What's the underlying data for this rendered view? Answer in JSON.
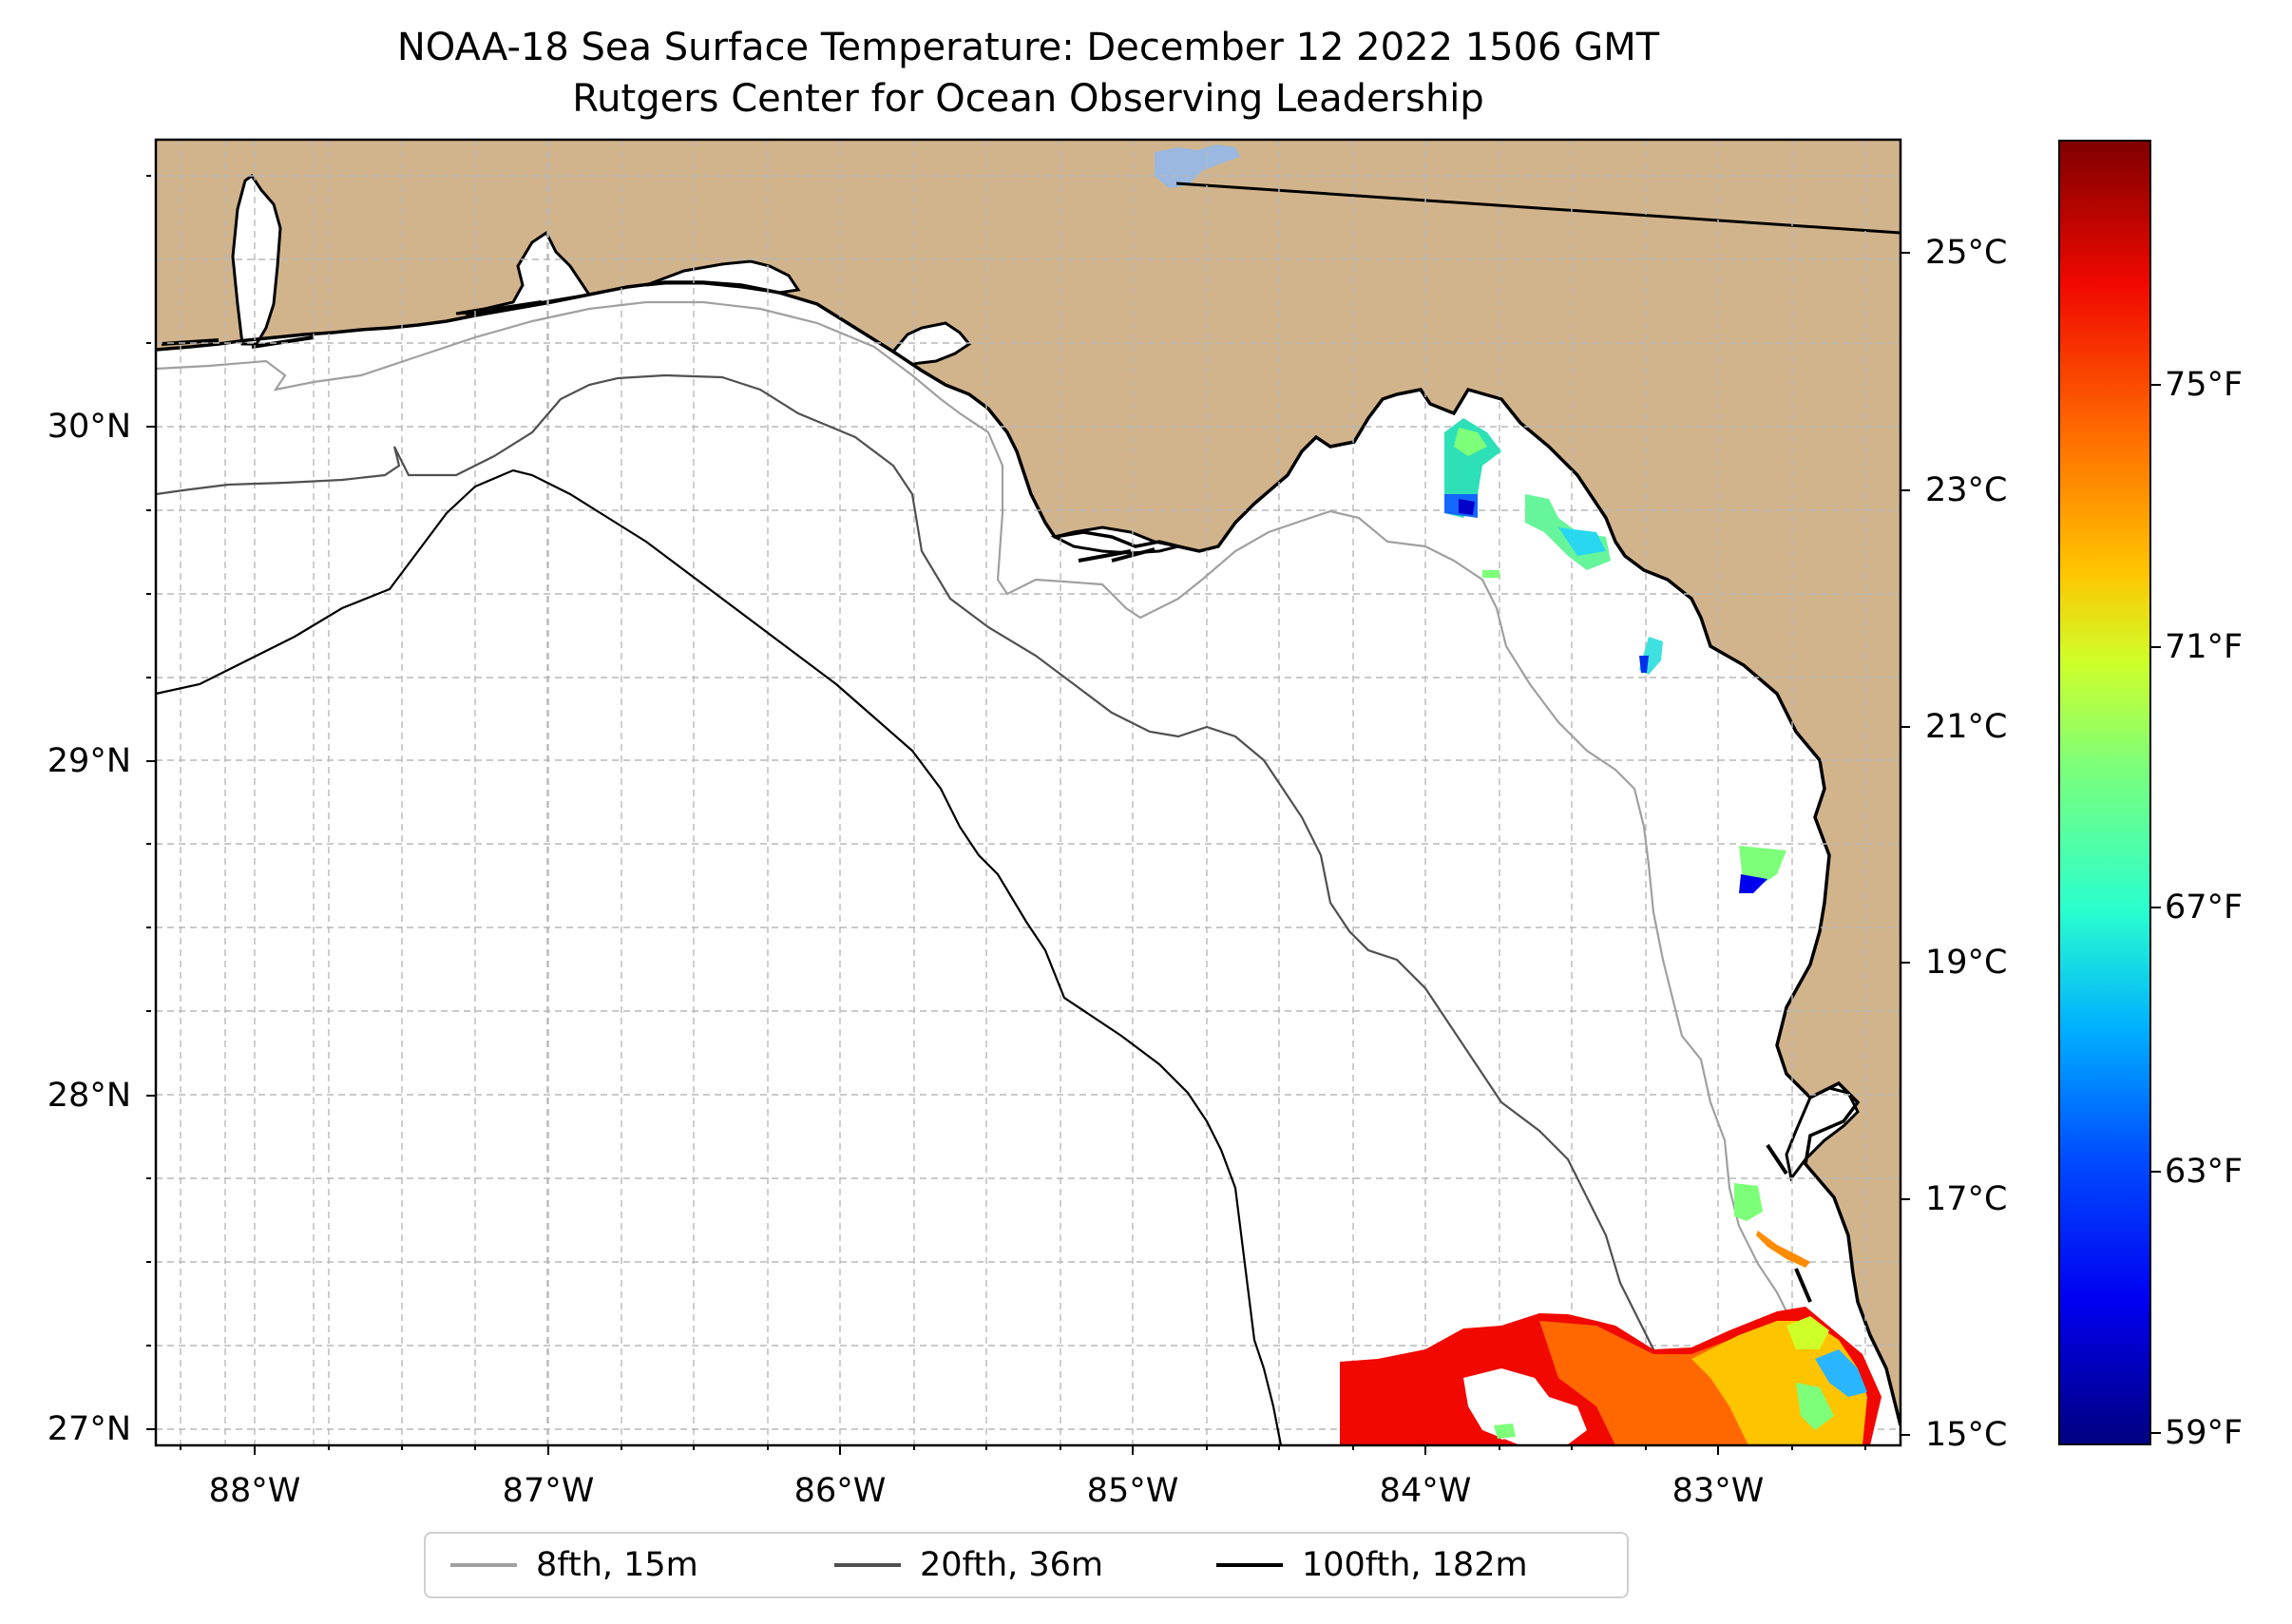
{
  "title": {
    "line1": "NOAA-18 Sea Surface Temperature: December 12 2022 1506 GMT",
    "line2": "Rutgers Center for Ocean Observing Leadership"
  },
  "map": {
    "lon_range": [
      -88.33,
      -82.37
    ],
    "lat_range": [
      26.93,
      30.84
    ],
    "land_color": "#d2b48c",
    "ocean_color": "#ffffff",
    "lake_color": "#9ab8e0",
    "latitude_labels": [
      "30°N",
      "29°N",
      "28°N",
      "27°N"
    ],
    "longitude_labels": [
      "88°W",
      "87°W",
      "86°W",
      "85°W",
      "84°W",
      "83°W"
    ]
  },
  "colorbar": {
    "celsius_labels": [
      "25°C",
      "23°C",
      "21°C",
      "19°C",
      "17°C",
      "15°C"
    ],
    "fahrenheit_labels": [
      "75°F",
      "71°F",
      "67°F",
      "63°F",
      "59°F"
    ],
    "colormap": "jet",
    "range_c": [
      14.8,
      26.0
    ]
  },
  "legend": {
    "items": [
      {
        "label": "8fth, 15m",
        "color": "#a0a0a0"
      },
      {
        "label": "20fth, 36m",
        "color": "#505050"
      },
      {
        "label": "100fth, 182m",
        "color": "#000000"
      }
    ]
  }
}
